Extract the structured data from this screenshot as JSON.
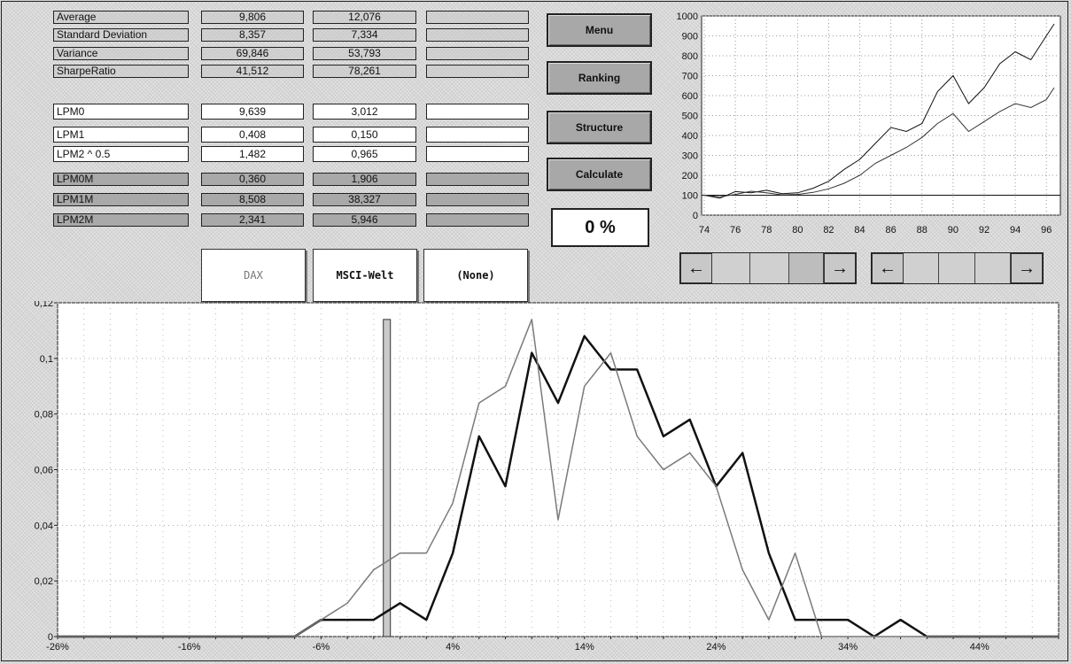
{
  "stats_top": [
    {
      "label": "Average",
      "dax": "9,806",
      "msci": "12,076",
      "none": ""
    },
    {
      "label": "Standard Deviation",
      "dax": "8,357",
      "msci": "7,334",
      "none": ""
    },
    {
      "label": "Variance",
      "dax": "69,846",
      "msci": "53,793",
      "none": ""
    },
    {
      "label": "SharpeRatio",
      "dax": "41,512",
      "msci": "78,261",
      "none": ""
    }
  ],
  "stats_lpm": [
    {
      "label": "LPM0",
      "dax": "9,639",
      "msci": "3,012",
      "none": ""
    },
    {
      "label": "LPM1",
      "dax": "0,408",
      "msci": "0,150",
      "none": ""
    },
    {
      "label": "LPM2 ^ 0.5",
      "dax": "1,482",
      "msci": "0,965",
      "none": ""
    }
  ],
  "stats_lpmm": [
    {
      "label": "LPM0M",
      "dax": "0,360",
      "msci": "1,906",
      "none": ""
    },
    {
      "label": "LPM1M",
      "dax": "8,508",
      "msci": "38,327",
      "none": ""
    },
    {
      "label": "LPM2M",
      "dax": "2,341",
      "msci": "5,946",
      "none": ""
    }
  ],
  "selectors": {
    "dax": "DAX",
    "msci": "MSCI-Welt",
    "none": "(None)"
  },
  "buttons": {
    "menu": "Menu",
    "ranking": "Ranking",
    "structure": "Structure",
    "calculate": "Calculate"
  },
  "progress": "0 %",
  "icons": {
    "left": "arrow-left-icon",
    "right": "arrow-right-icon"
  },
  "chart_data": [
    {
      "type": "line",
      "ylim": [
        0,
        1000
      ],
      "yticks": [
        "1000",
        "900",
        "800",
        "700",
        "600",
        "500",
        "400",
        "300",
        "200",
        "100",
        "0"
      ],
      "xticks": [
        "74",
        "76",
        "78",
        "80",
        "82",
        "84",
        "86",
        "88",
        "90",
        "92",
        "94",
        "96"
      ],
      "baseline": 100,
      "series": [
        {
          "values": [
            [
              74,
              100
            ],
            [
              75,
              85
            ],
            [
              76,
              118
            ],
            [
              77,
              112
            ],
            [
              78,
              125
            ],
            [
              79,
              108
            ],
            [
              80,
              112
            ],
            [
              81,
              135
            ],
            [
              82,
              170
            ],
            [
              83,
              230
            ],
            [
              84,
              280
            ],
            [
              85,
              360
            ],
            [
              86,
              440
            ],
            [
              87,
              420
            ],
            [
              88,
              460
            ],
            [
              89,
              620
            ],
            [
              90,
              700
            ],
            [
              91,
              560
            ],
            [
              92,
              640
            ],
            [
              93,
              760
            ],
            [
              94,
              820
            ],
            [
              95,
              780
            ],
            [
              96,
              900
            ],
            [
              96.5,
              960
            ]
          ]
        },
        {
          "values": [
            [
              74,
              100
            ],
            [
              75,
              92
            ],
            [
              76,
              104
            ],
            [
              77,
              120
            ],
            [
              78,
              112
            ],
            [
              79,
              102
            ],
            [
              80,
              104
            ],
            [
              81,
              114
            ],
            [
              82,
              132
            ],
            [
              83,
              160
            ],
            [
              84,
              200
            ],
            [
              85,
              260
            ],
            [
              86,
              300
            ],
            [
              87,
              340
            ],
            [
              88,
              390
            ],
            [
              89,
              460
            ],
            [
              90,
              510
            ],
            [
              91,
              420
            ],
            [
              92,
              470
            ],
            [
              93,
              520
            ],
            [
              94,
              560
            ],
            [
              95,
              540
            ],
            [
              96,
              580
            ],
            [
              96.5,
              640
            ]
          ]
        }
      ],
      "colors": [
        "#111111",
        "#333333"
      ]
    },
    {
      "type": "line",
      "ylim": [
        0,
        0.12
      ],
      "xlim": [
        -26,
        50
      ],
      "yticks": [
        "0,12",
        "0,1",
        "0,08",
        "0,06",
        "0,04",
        "0,02",
        "0"
      ],
      "xticks": [
        "-26%",
        "-16%",
        "-6%",
        "4%",
        "14%",
        "24%",
        "34%",
        "44%"
      ],
      "marker_x": -1,
      "marker_label": "0 %",
      "series": [
        {
          "values": [
            [
              -26,
              0
            ],
            [
              -8,
              0
            ],
            [
              -6,
              0.006
            ],
            [
              -4,
              0.006
            ],
            [
              -2,
              0.006
            ],
            [
              0,
              0.012
            ],
            [
              2,
              0.006
            ],
            [
              4,
              0.03
            ],
            [
              6,
              0.072
            ],
            [
              8,
              0.054
            ],
            [
              10,
              0.102
            ],
            [
              12,
              0.084
            ],
            [
              14,
              0.108
            ],
            [
              16,
              0.096
            ],
            [
              18,
              0.096
            ],
            [
              20,
              0.072
            ],
            [
              22,
              0.078
            ],
            [
              24,
              0.054
            ],
            [
              26,
              0.066
            ],
            [
              28,
              0.03
            ],
            [
              30,
              0.006
            ],
            [
              32,
              0.006
            ],
            [
              34,
              0.006
            ],
            [
              36,
              0
            ],
            [
              38,
              0.006
            ],
            [
              40,
              0
            ],
            [
              50,
              0
            ]
          ],
          "color": "#111111",
          "width": 2.5
        },
        {
          "values": [
            [
              -26,
              0
            ],
            [
              -8,
              0
            ],
            [
              -6,
              0.006
            ],
            [
              -4,
              0.012
            ],
            [
              -2,
              0.024
            ],
            [
              0,
              0.03
            ],
            [
              2,
              0.03
            ],
            [
              4,
              0.048
            ],
            [
              6,
              0.084
            ],
            [
              8,
              0.09
            ],
            [
              10,
              0.114
            ],
            [
              12,
              0.042
            ],
            [
              14,
              0.09
            ],
            [
              16,
              0.102
            ],
            [
              18,
              0.072
            ],
            [
              20,
              0.06
            ],
            [
              22,
              0.066
            ],
            [
              24,
              0.054
            ],
            [
              26,
              0.024
            ],
            [
              28,
              0.006
            ],
            [
              30,
              0.03
            ],
            [
              32,
              0
            ],
            [
              34,
              0
            ],
            [
              50,
              0
            ]
          ],
          "color": "#7a7a7a",
          "width": 1.5
        }
      ]
    }
  ]
}
